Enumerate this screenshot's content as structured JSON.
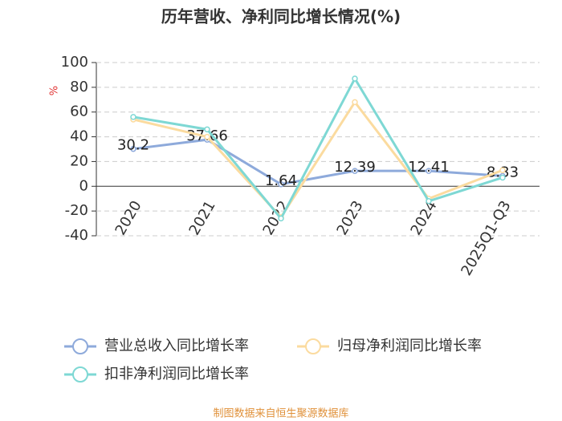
{
  "chart_data": {
    "type": "line",
    "title": "历年营收、净利同比增长情况(%)",
    "y_unit": "%",
    "source": "制图数据来自恒生聚源数据库",
    "categories": [
      "2020",
      "2021",
      "2022",
      "2023",
      "2024",
      "2025Q1-Q3"
    ],
    "series": [
      {
        "name": "营业总收入同比增长率",
        "color": "#8eaadb",
        "values": [
          30.2,
          37.66,
          1.64,
          12.39,
          12.41,
          8.33
        ],
        "show_labels": true
      },
      {
        "name": "归母净利润同比增长率",
        "color": "#fbdb9f",
        "values": [
          54,
          40,
          -25,
          68,
          -10,
          13
        ],
        "show_labels": false
      },
      {
        "name": "扣非净利润同比增长率",
        "color": "#7ed8d4",
        "values": [
          56,
          46,
          -26,
          87,
          -12,
          7
        ],
        "show_labels": false
      }
    ],
    "ylim": [
      -40,
      100
    ],
    "yticks": [
      -40,
      -20,
      0,
      20,
      40,
      60,
      80,
      100
    ],
    "grid": true
  }
}
